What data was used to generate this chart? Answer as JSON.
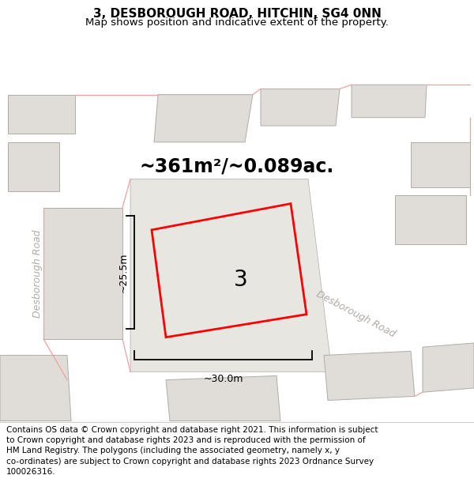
{
  "title": "3, DESBOROUGH ROAD, HITCHIN, SG4 0NN",
  "subtitle": "Map shows position and indicative extent of the property.",
  "footer": "Contains OS data © Crown copyright and database right 2021. This information is subject to Crown copyright and database rights 2023 and is reproduced with the permission of HM Land Registry. The polygons (including the associated geometry, namely x, y co-ordinates) are subject to Crown copyright and database rights 2023 Ordnance Survey 100026316.",
  "area_label": "~361m²/~0.089ac.",
  "width_label": "~30.0m",
  "height_label": "~25.5m",
  "plot_number": "3",
  "map_bg": "#f2f0eb",
  "building_fill": "#e0ddd8",
  "building_stroke": "#b0aca8",
  "road_fill": "#ffffff",
  "red_line_color": "#ff0000",
  "pink_line_color": "#f0a0a0",
  "dim_line_color": "#000000",
  "road_label_color": "#b0aba5",
  "road_label_size": 9,
  "title_fontsize": 11,
  "subtitle_fontsize": 9.5,
  "area_label_fontsize": 17,
  "plot_number_fontsize": 20,
  "dim_label_fontsize": 9,
  "footer_fontsize": 7.5
}
